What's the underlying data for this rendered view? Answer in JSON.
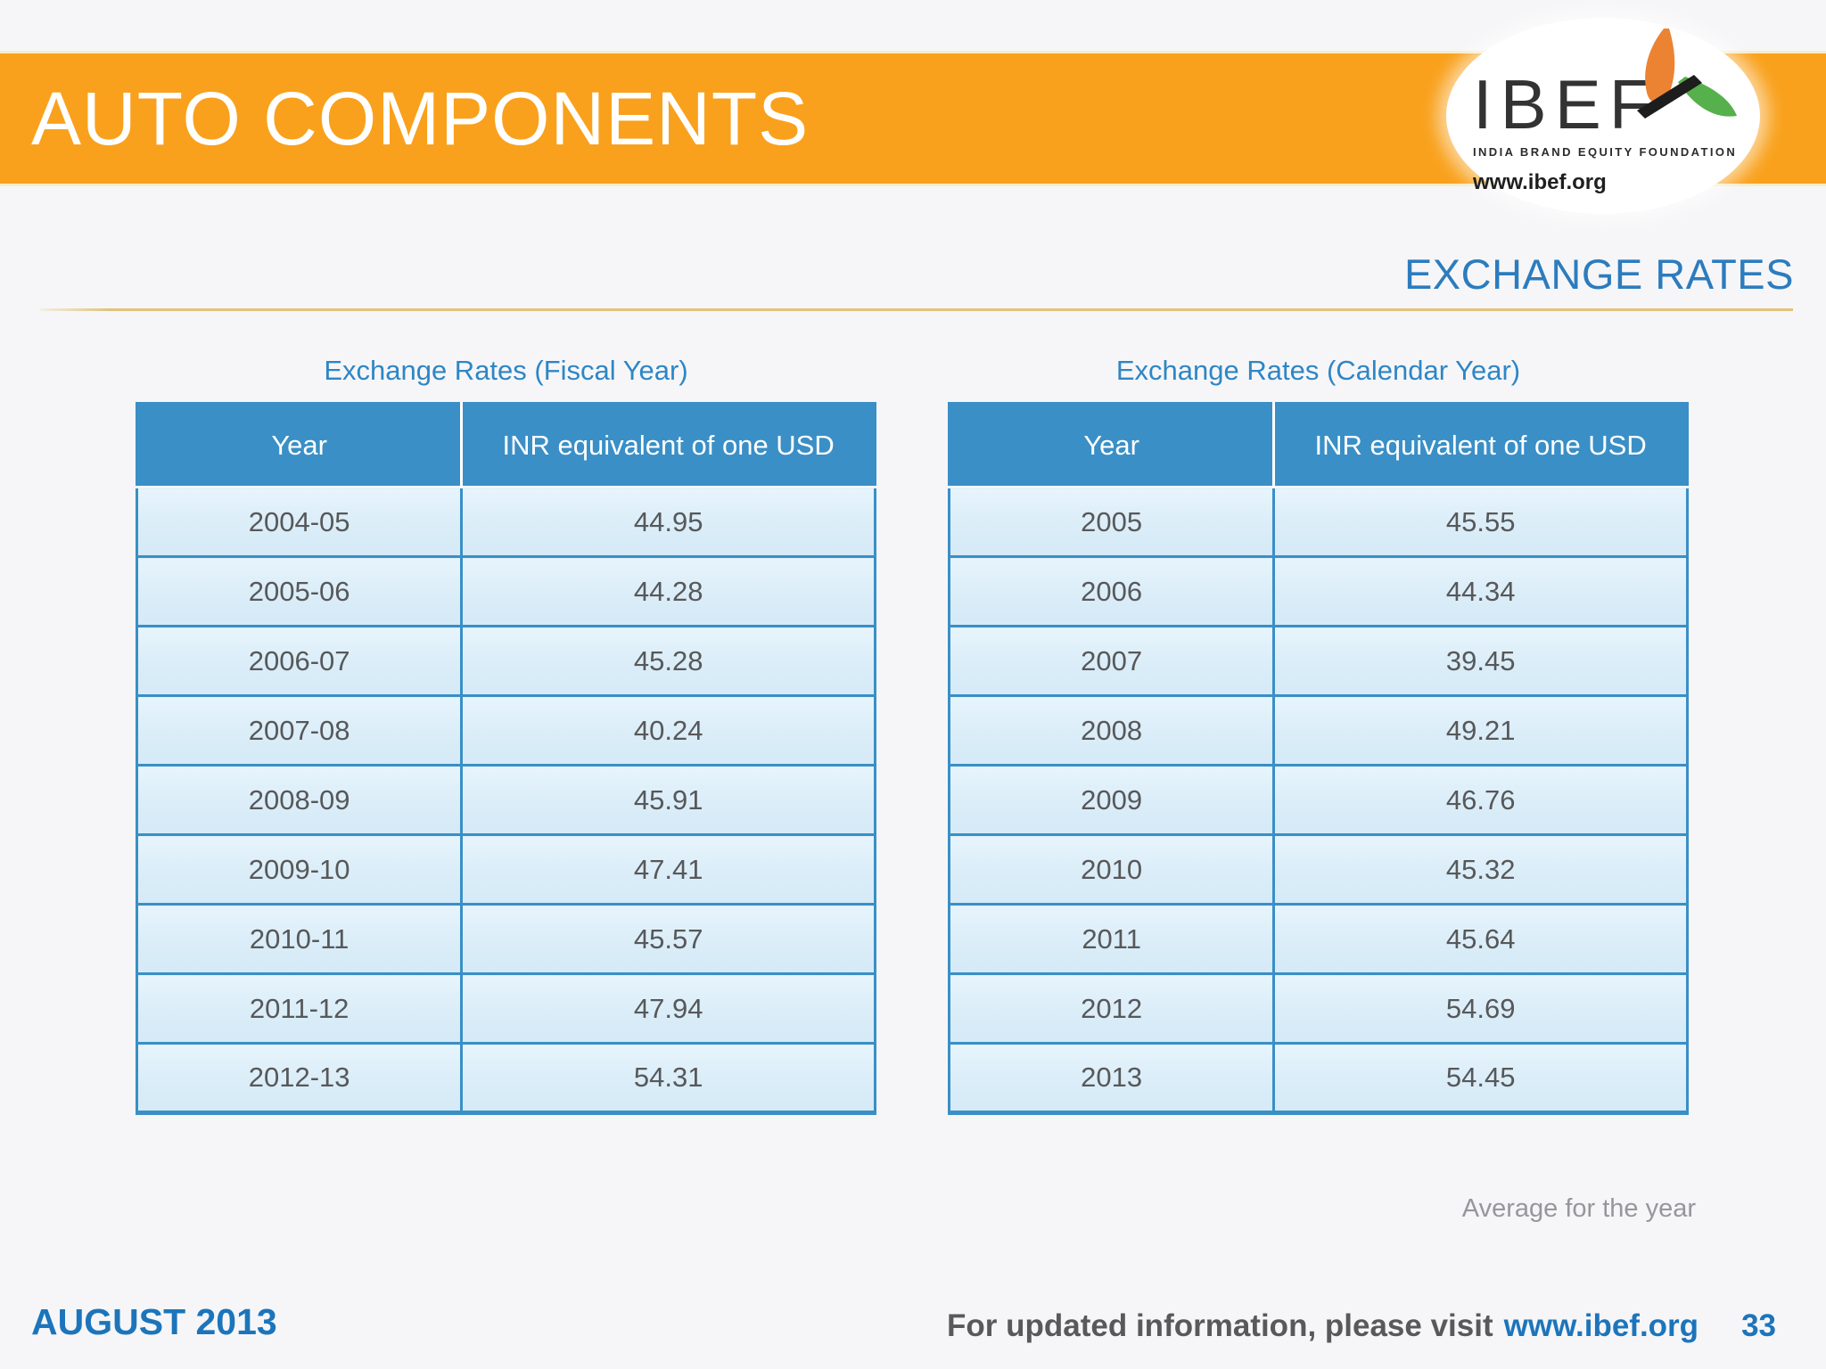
{
  "banner": {
    "title": "AUTO COMPONENTS"
  },
  "logo": {
    "acronym": "IBEF",
    "tagline": "INDIA BRAND EQUITY FOUNDATION",
    "website": "www.ibef.org"
  },
  "section": {
    "title": "EXCHANGE RATES"
  },
  "tables": {
    "fiscal": {
      "title": "Exchange Rates (Fiscal Year)",
      "columns": [
        "Year",
        "INR equivalent of one USD"
      ],
      "rows": [
        [
          "2004-05",
          "44.95"
        ],
        [
          "2005-06",
          "44.28"
        ],
        [
          "2006-07",
          "45.28"
        ],
        [
          "2007-08",
          "40.24"
        ],
        [
          "2008-09",
          "45.91"
        ],
        [
          "2009-10",
          "47.41"
        ],
        [
          "2010-11",
          "45.57"
        ],
        [
          "2011-12",
          "47.94"
        ],
        [
          "2012-13",
          "54.31"
        ]
      ]
    },
    "calendar": {
      "title": "Exchange Rates (Calendar Year)",
      "columns": [
        "Year",
        "INR equivalent of one USD"
      ],
      "rows": [
        [
          "2005",
          "45.55"
        ],
        [
          "2006",
          "44.34"
        ],
        [
          "2007",
          "39.45"
        ],
        [
          "2008",
          "49.21"
        ],
        [
          "2009",
          "46.76"
        ],
        [
          "2010",
          "45.32"
        ],
        [
          "2011",
          "45.64"
        ],
        [
          "2012",
          "54.69"
        ],
        [
          "2013",
          "54.45"
        ]
      ]
    }
  },
  "note": {
    "text": "Average for the year"
  },
  "footer": {
    "date": "AUGUST 2013",
    "info_text": "For updated information, please visit",
    "info_link": "www.ibef.org",
    "page_number": "33"
  },
  "colors": {
    "banner_orange": "#F9A11C",
    "table_header_blue": "#3A8FC6",
    "row_light_blue": "#DDEEF9",
    "title_blue": "#2E86C5",
    "section_blue": "#2C7CBE",
    "footer_blue": "#1C75BB",
    "divider_gold": "#DFC37C",
    "cell_text": "#57585A",
    "note_gray": "#97979B",
    "background": "#F6F6F8"
  }
}
